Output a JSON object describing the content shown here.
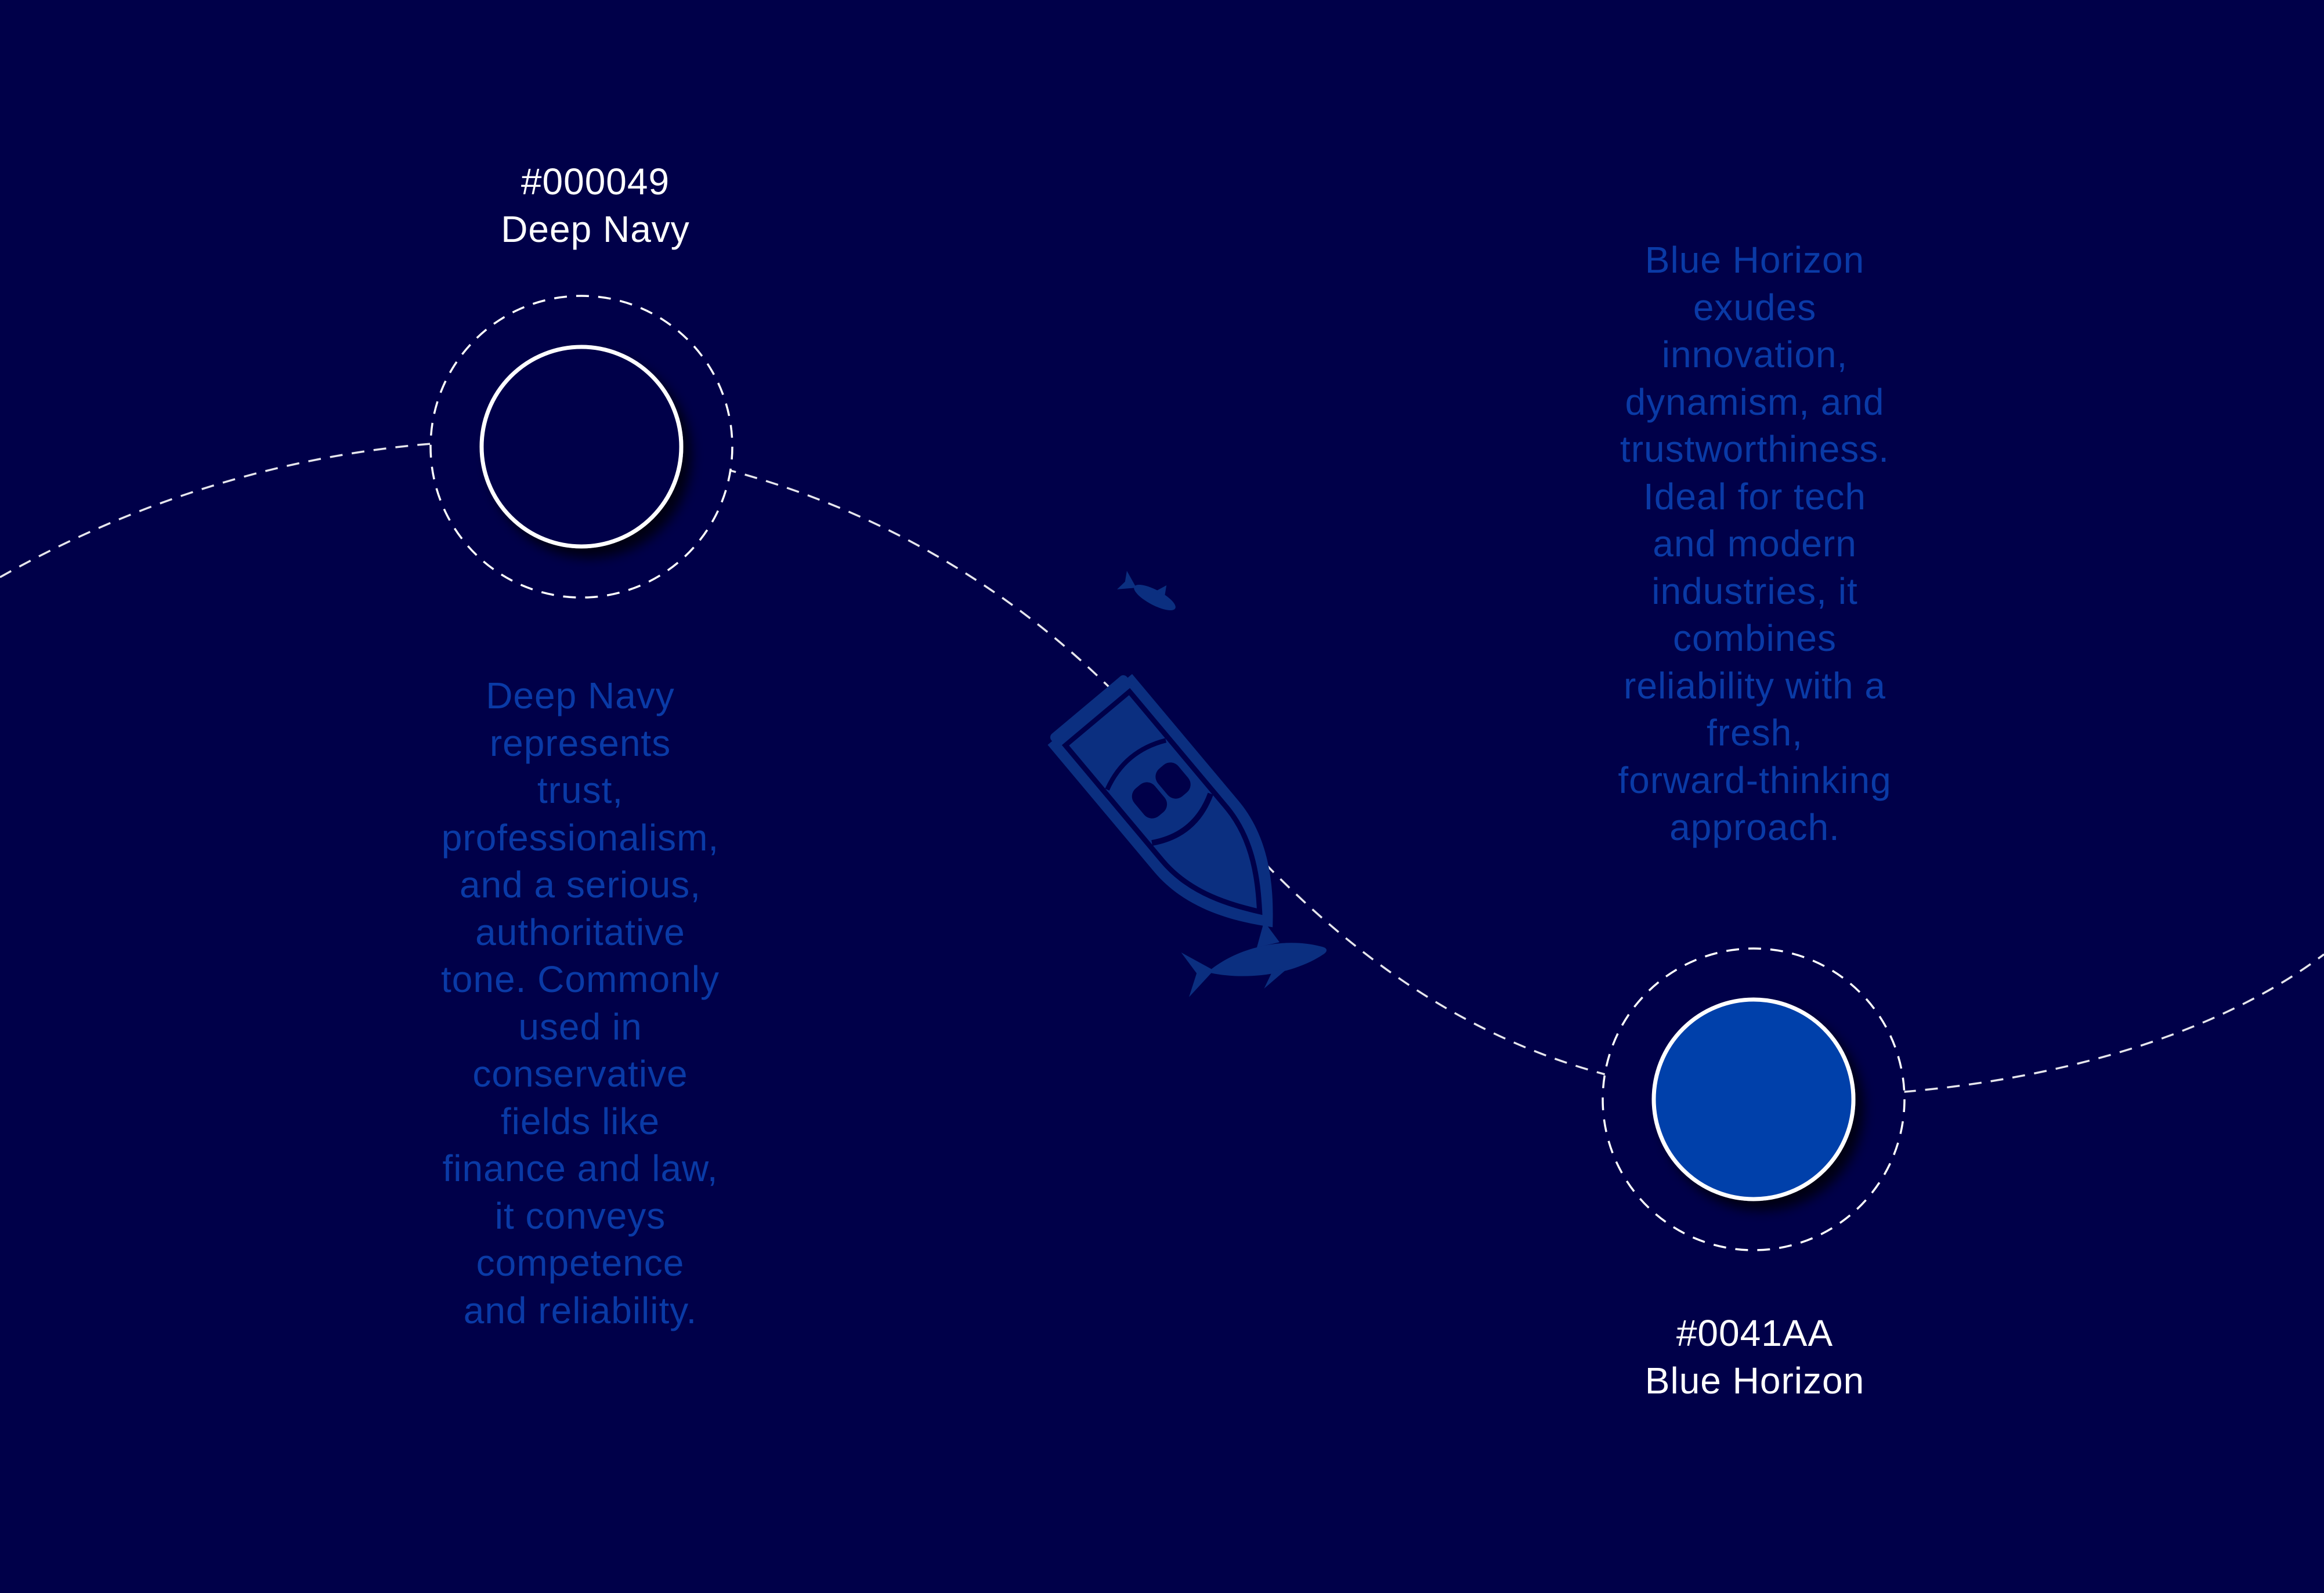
{
  "colors": {
    "background": "#000049",
    "swatch_fills": [
      "#000049",
      "#0041AA"
    ],
    "ring_stroke": "#ffffff",
    "description_text": "#0a3aa6",
    "illustration": "#0b2f80"
  },
  "swatches": [
    {
      "hex": "#000049",
      "name": "Deep Navy",
      "description_lines": [
        "Deep Navy",
        "represents",
        "trust,",
        "professionalism,",
        "and a serious,",
        "authoritative",
        "tone. Commonly",
        "used in",
        "conservative",
        "fields like",
        "finance and law,",
        "it conveys",
        "competence",
        "and reliability."
      ]
    },
    {
      "hex": "#0041AA",
      "name": "Blue Horizon",
      "description_lines": [
        "Blue Horizon",
        "exudes",
        "innovation,",
        "dynamism, and",
        "trustworthiness.",
        "Ideal for tech",
        "and modern",
        "industries, it",
        "combines",
        "reliability with a",
        "fresh,",
        "forward-thinking",
        "approach."
      ]
    }
  ],
  "illustration": {
    "icons": [
      "boat-icon",
      "fish-icon",
      "shark-icon"
    ]
  }
}
